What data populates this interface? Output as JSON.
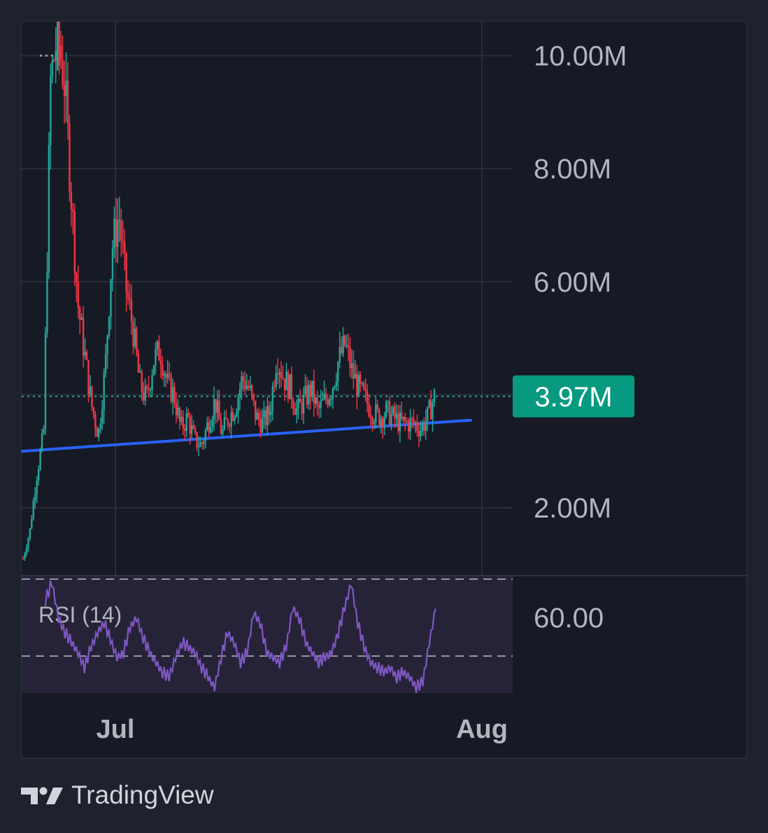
{
  "chart_data": [
    {
      "type": "candlestick",
      "price_axis": {
        "unit": "M",
        "range": [
          0.8,
          10.6
        ],
        "ticks": [
          10,
          8,
          6,
          4,
          2
        ],
        "tick_labels": [
          "10.00M",
          "8.00M",
          "6.00M",
          "",
          "2.00M"
        ]
      },
      "time_axis": {
        "tick_labels": [
          "Jul",
          "Aug"
        ]
      },
      "last_price": 3.97,
      "last_price_label": "3.97M",
      "trendline": {
        "from": [
          0,
          3.0
        ],
        "to": [
          1,
          3.55
        ]
      },
      "close_path": [
        1.1,
        1.6,
        2.6,
        3.3,
        9.5,
        10.4,
        9.6,
        7.6,
        5.6,
        4.7,
        3.8,
        3.3,
        4.5,
        6.6,
        7.2,
        5.9,
        5.2,
        4.2,
        3.9,
        4.6,
        4.8,
        4.2,
        4.0,
        3.4,
        3.6,
        3.2,
        3.1,
        3.5,
        3.9,
        3.3,
        3.6,
        3.8,
        4.3,
        4.1,
        3.6,
        3.5,
        3.7,
        4.7,
        4.3,
        4.1,
        3.7,
        3.9,
        4.1,
        3.7,
        3.9,
        4.1,
        4.6,
        4.9,
        4.4,
        4.1,
        3.9,
        3.7,
        3.6,
        3.7,
        3.6,
        3.5,
        3.5,
        3.5,
        3.4,
        3.6,
        3.97
      ],
      "colors": {
        "up": "#26a69a",
        "down": "#f23645",
        "trendline": "#2962ff",
        "last_price_bg": "#089981"
      }
    },
    {
      "type": "line",
      "title": "RSI (14)",
      "axis": {
        "tick_label": "60.00",
        "bands": [
          70,
          30
        ]
      },
      "values": [
        65,
        72,
        58,
        52,
        48,
        44,
        38,
        46,
        52,
        56,
        49,
        42,
        44,
        54,
        58,
        50,
        44,
        40,
        36,
        34,
        42,
        48,
        46,
        44,
        38,
        34,
        30,
        42,
        52,
        48,
        40,
        44,
        60,
        56,
        44,
        42,
        40,
        46,
        62,
        58,
        48,
        44,
        40,
        42,
        44,
        52,
        62,
        72,
        56,
        46,
        40,
        38,
        36,
        38,
        34,
        36,
        34,
        30,
        32,
        48,
        62
      ],
      "colors": {
        "line": "#7e57c2",
        "band_fill": "#262338"
      }
    }
  ],
  "brand": {
    "name": "TradingView"
  }
}
